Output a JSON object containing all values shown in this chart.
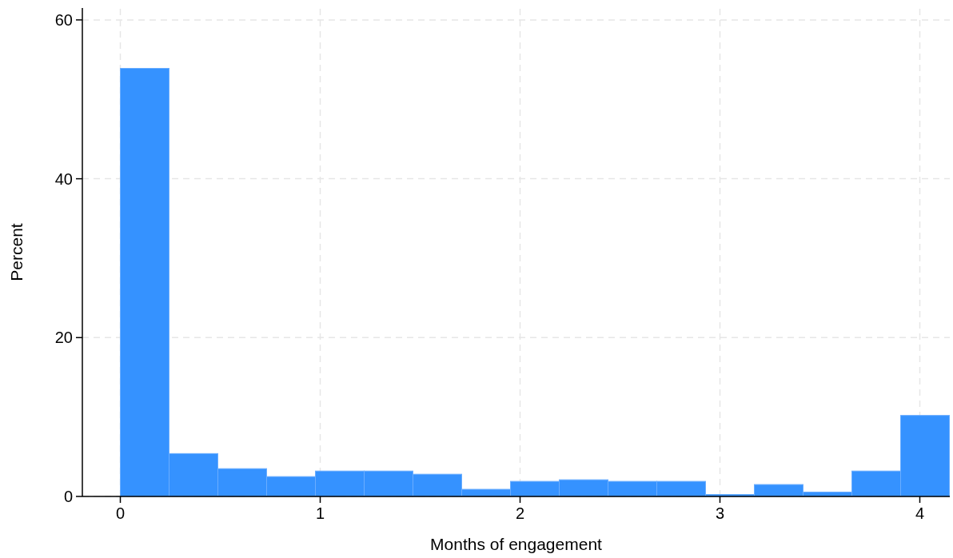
{
  "chart_data": {
    "type": "histogram",
    "xlabel": "Months of engagement",
    "ylabel": "Percent",
    "bins": [
      0,
      0.244,
      0.488,
      0.732,
      0.976,
      1.22,
      1.464,
      1.708,
      1.952,
      2.196,
      2.44,
      2.684,
      2.928,
      3.172,
      3.416,
      3.66,
      3.904,
      4.148
    ],
    "values": [
      53.9,
      5.4,
      3.5,
      2.5,
      3.2,
      3.2,
      2.8,
      0.9,
      1.9,
      2.1,
      1.9,
      1.9,
      0.25,
      1.5,
      0.55,
      3.2,
      10.2
    ],
    "color": "#3592ff",
    "xlim": [
      -0.19,
      4.15
    ],
    "xticks": [
      0,
      1,
      2,
      3,
      4
    ],
    "ylim": [
      0,
      61.5
    ],
    "yticks": [
      0,
      20,
      40,
      60
    ],
    "grid": true
  }
}
